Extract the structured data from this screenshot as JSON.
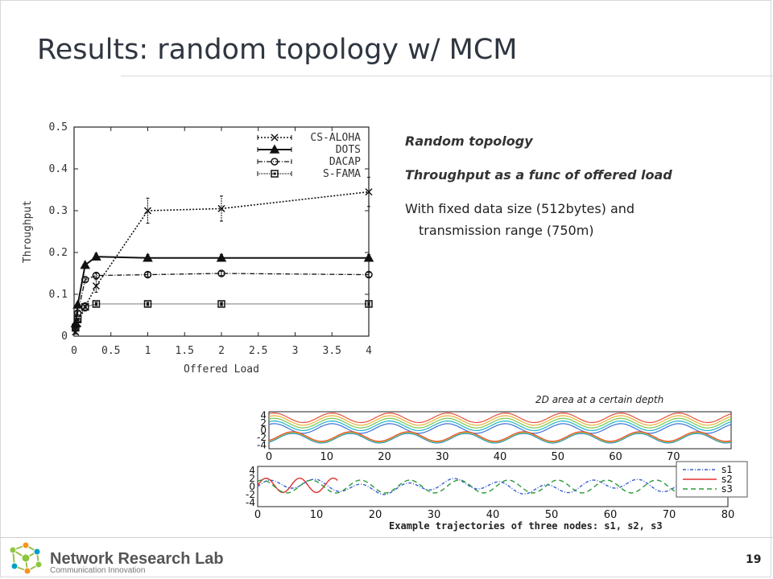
{
  "slide": {
    "title": "Results: random topology w/ MCM",
    "page_number": "19"
  },
  "bullets": [
    {
      "text": "Random topology",
      "style": "italic-bold"
    },
    {
      "text": "Throughput as a func of offered load",
      "style": "italic-bold"
    },
    {
      "text": "With fixed data size (512bytes) and",
      "style": "normal"
    },
    {
      "text": "transmission range (750m)",
      "style": "normal-indent"
    }
  ],
  "chart_data": [
    {
      "type": "line",
      "title": "",
      "xlabel": "Offered Load",
      "ylabel": "Throughput",
      "xlim": [
        0,
        4
      ],
      "ylim": [
        0,
        0.5
      ],
      "xticks": [
        "0",
        "0.5",
        "1",
        "1.5",
        "2",
        "2.5",
        "3",
        "3.5",
        "4"
      ],
      "yticks": [
        "0",
        "0.1",
        "0.2",
        "0.3",
        "0.4",
        "0.5"
      ],
      "grid": false,
      "legend_position": "top-right",
      "x": [
        0.02,
        0.05,
        0.15,
        0.3,
        1.0,
        2.0,
        4.0
      ],
      "series": [
        {
          "name": "CS-ALOHA",
          "marker": "x",
          "dash": "dotted",
          "values": [
            0.01,
            0.03,
            0.07,
            0.12,
            0.3,
            0.305,
            0.345
          ],
          "err": [
            0.005,
            0.01,
            0.01,
            0.015,
            0.03,
            0.03,
            0.035
          ]
        },
        {
          "name": "DOTS",
          "marker": "triangle",
          "dash": "solid",
          "values": [
            0.03,
            0.075,
            0.17,
            0.19,
            0.187,
            0.187,
            0.187
          ],
          "err": [
            0.005,
            0.005,
            0.005,
            0.008,
            0.008,
            0.008,
            0.008
          ]
        },
        {
          "name": "DACAP",
          "marker": "circle",
          "dash": "dashdot",
          "values": [
            0.025,
            0.055,
            0.135,
            0.145,
            0.147,
            0.15,
            0.147
          ],
          "err": [
            0.004,
            0.004,
            0.004,
            0.005,
            0.005,
            0.005,
            0.005
          ]
        },
        {
          "name": "S-FAMA",
          "marker": "square",
          "dash": "fine",
          "values": [
            0.02,
            0.04,
            0.07,
            0.077,
            0.077,
            0.077,
            0.077
          ],
          "err": [
            0.003,
            0.003,
            0.003,
            0.004,
            0.004,
            0.004,
            0.004
          ]
        }
      ]
    },
    {
      "type": "line",
      "title": "",
      "caption": "2D area at a certain depth",
      "xlim": [
        0,
        80
      ],
      "ylim": [
        -5,
        5
      ],
      "xticks": [
        "0",
        "10",
        "20",
        "30",
        "40",
        "50",
        "60",
        "70"
      ],
      "yticks": [
        "4",
        "2",
        "0",
        "-2",
        "-4"
      ],
      "contour_colors": [
        "#3a6fd8",
        "#20b4c8",
        "#7dc84a",
        "#e6b23a",
        "#e8503a"
      ]
    },
    {
      "type": "line",
      "title": "",
      "caption": "Example trajectories of three nodes: s1, s2, s3",
      "xlim": [
        0,
        80
      ],
      "ylim": [
        -5,
        5
      ],
      "xticks": [
        "0",
        "10",
        "20",
        "30",
        "40",
        "50",
        "60",
        "70",
        "80"
      ],
      "yticks": [
        "4",
        "2",
        "0",
        "-2",
        "-4"
      ],
      "legend_position": "top-right",
      "series": [
        {
          "name": "s1",
          "color": "#3a5fd0",
          "dash": "dashdot"
        },
        {
          "name": "s2",
          "color": "#e03030",
          "dash": "solid"
        },
        {
          "name": "s3",
          "color": "#2e9a3a",
          "dash": "dashed"
        }
      ]
    }
  ],
  "footer": {
    "lab_name": "Network Research Lab",
    "lab_sub": "Communication Innovation",
    "logo_colors": [
      "#8dc63f",
      "#f7941d",
      "#00a0c6"
    ]
  }
}
